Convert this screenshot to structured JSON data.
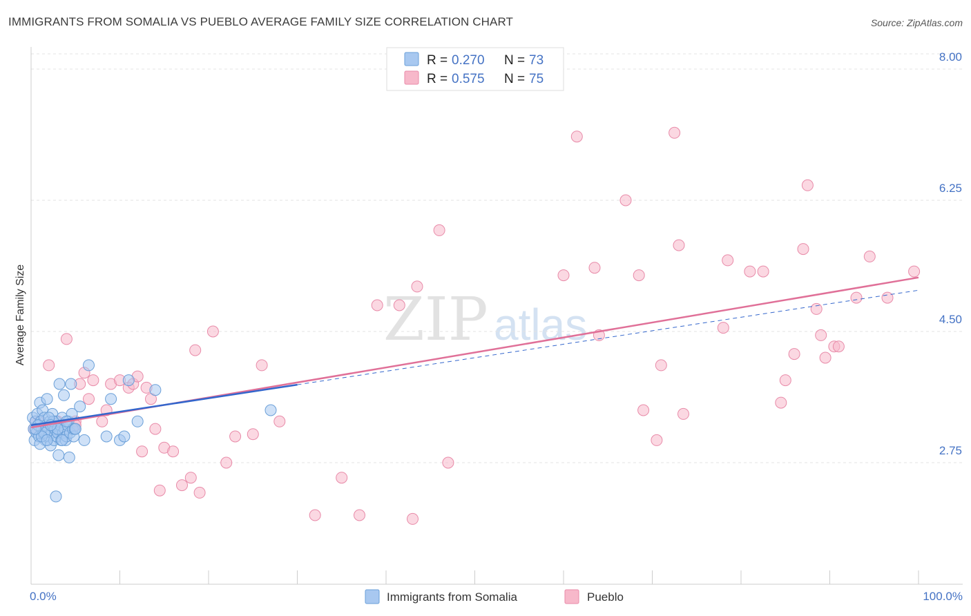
{
  "title": "IMMIGRANTS FROM SOMALIA VS PUEBLO AVERAGE FAMILY SIZE CORRELATION CHART",
  "source": "Source: ZipAtlas.com",
  "watermark": {
    "zip": "ZIP",
    "atlas": "atlas"
  },
  "colors": {
    "somalia_fill": "#a8c8f0",
    "somalia_stroke": "#6a9fd8",
    "somalia_line": "#3366cc",
    "pueblo_fill": "#f7b8ca",
    "pueblo_stroke": "#e88aa8",
    "pueblo_line": "#e07098",
    "grid": "#e3e3e3",
    "axis_tick_label": "#4472c4"
  },
  "chart_data": {
    "type": "scatter",
    "title": "IMMIGRANTS FROM SOMALIA VS PUEBLO AVERAGE FAMILY SIZE CORRELATION CHART",
    "xlabel": "",
    "ylabel": "Average Family Size",
    "xlim": [
      0,
      100
    ],
    "ylim": [
      1.2,
      8.5
    ],
    "x_tick_labels": [
      "0.0%",
      "100.0%"
    ],
    "y_ticks": [
      2.75,
      4.5,
      6.25,
      8.0
    ],
    "y_tick_labels": [
      "2.75",
      "4.50",
      "6.25",
      "8.00"
    ],
    "grid": "horizontal-dashed",
    "legend": {
      "placement": "top-center",
      "rows": [
        {
          "r_label": "R = ",
          "r_value": "0.270",
          "n_label": "N = ",
          "n_value": "73"
        },
        {
          "r_label": "R = ",
          "r_value": "0.575",
          "n_label": "N = ",
          "n_value": "75"
        }
      ]
    },
    "bottom_legend": [
      "Immigrants from Somalia",
      "Pueblo"
    ],
    "series": [
      {
        "name": "Immigrants from Somalia",
        "r": 0.27,
        "n": 73,
        "trend": {
          "x0": 0,
          "y0": 3.25,
          "x1": 30,
          "y1": 3.79
        },
        "points": [
          [
            0.2,
            3.35
          ],
          [
            0.3,
            3.2
          ],
          [
            0.4,
            3.05
          ],
          [
            0.5,
            3.3
          ],
          [
            0.6,
            3.15
          ],
          [
            0.7,
            3.4
          ],
          [
            0.8,
            3.25
          ],
          [
            0.9,
            3.1
          ],
          [
            1.0,
            3.55
          ],
          [
            1.1,
            3.3
          ],
          [
            1.2,
            3.2
          ],
          [
            1.3,
            3.45
          ],
          [
            1.4,
            3.15
          ],
          [
            1.5,
            3.35
          ],
          [
            1.6,
            3.05
          ],
          [
            1.7,
            3.25
          ],
          [
            1.8,
            3.6
          ],
          [
            1.9,
            3.2
          ],
          [
            2.0,
            3.1
          ],
          [
            2.1,
            3.3
          ],
          [
            2.2,
            2.98
          ],
          [
            2.3,
            3.15
          ],
          [
            2.4,
            3.4
          ],
          [
            2.5,
            3.25
          ],
          [
            2.6,
            3.05
          ],
          [
            2.7,
            3.2
          ],
          [
            2.8,
            3.3
          ],
          [
            2.9,
            3.1
          ],
          [
            3.0,
            3.15
          ],
          [
            3.1,
            2.85
          ],
          [
            3.2,
            3.8
          ],
          [
            3.3,
            3.25
          ],
          [
            3.4,
            3.05
          ],
          [
            3.5,
            3.35
          ],
          [
            3.6,
            3.15
          ],
          [
            3.7,
            3.65
          ],
          [
            3.8,
            3.2
          ],
          [
            3.9,
            3.05
          ],
          [
            4.0,
            3.1
          ],
          [
            4.1,
            3.25
          ],
          [
            4.2,
            3.3
          ],
          [
            4.3,
            2.82
          ],
          [
            4.4,
            3.15
          ],
          [
            4.5,
            3.8
          ],
          [
            4.6,
            3.4
          ],
          [
            4.7,
            3.2
          ],
          [
            4.8,
            3.1
          ],
          [
            4.9,
            3.2
          ],
          [
            1.0,
            3.0
          ],
          [
            1.5,
            3.15
          ],
          [
            2.5,
            3.3
          ],
          [
            3.5,
            3.05
          ],
          [
            5.5,
            3.5
          ],
          [
            6.0,
            3.05
          ],
          [
            6.5,
            4.05
          ],
          [
            8.5,
            3.1
          ],
          [
            9.0,
            3.6
          ],
          [
            10.0,
            3.05
          ],
          [
            10.5,
            3.1
          ],
          [
            11.0,
            3.85
          ],
          [
            12.0,
            3.3
          ],
          [
            14.0,
            3.72
          ],
          [
            27.0,
            3.45
          ],
          [
            2.8,
            2.3
          ],
          [
            0.8,
            3.25
          ],
          [
            1.2,
            3.1
          ],
          [
            2.0,
            3.35
          ],
          [
            3.0,
            3.2
          ],
          [
            4.0,
            3.3
          ],
          [
            5.0,
            3.2
          ],
          [
            0.5,
            3.2
          ],
          [
            1.8,
            3.05
          ],
          [
            2.2,
            3.25
          ]
        ]
      },
      {
        "name": "Pueblo",
        "r": 0.575,
        "n": 75,
        "trend": {
          "x0": 0,
          "y0": 3.22,
          "x1": 100,
          "y1": 5.22
        },
        "points": [
          [
            0.3,
            3.2
          ],
          [
            0.5,
            3.3
          ],
          [
            1.0,
            3.3
          ],
          [
            2.0,
            4.05
          ],
          [
            3.0,
            3.3
          ],
          [
            4.0,
            4.4
          ],
          [
            5.0,
            3.3
          ],
          [
            5.0,
            3.25
          ],
          [
            5.5,
            3.8
          ],
          [
            6.0,
            3.95
          ],
          [
            6.5,
            3.6
          ],
          [
            7.0,
            3.85
          ],
          [
            8.0,
            3.3
          ],
          [
            8.5,
            3.45
          ],
          [
            9.0,
            3.8
          ],
          [
            10.0,
            3.85
          ],
          [
            11.0,
            3.75
          ],
          [
            11.5,
            3.8
          ],
          [
            12.0,
            3.9
          ],
          [
            12.5,
            2.9
          ],
          [
            13.0,
            3.75
          ],
          [
            13.5,
            3.6
          ],
          [
            14.0,
            3.2
          ],
          [
            14.5,
            2.38
          ],
          [
            15.0,
            2.95
          ],
          [
            16.0,
            2.9
          ],
          [
            17.0,
            2.45
          ],
          [
            18.0,
            2.55
          ],
          [
            18.5,
            4.25
          ],
          [
            19.0,
            2.35
          ],
          [
            20.5,
            4.5
          ],
          [
            22.0,
            2.75
          ],
          [
            23.0,
            3.1
          ],
          [
            25.0,
            3.13
          ],
          [
            26.0,
            4.05
          ],
          [
            28.0,
            3.3
          ],
          [
            32.0,
            2.05
          ],
          [
            35.0,
            2.55
          ],
          [
            37.0,
            2.05
          ],
          [
            39.0,
            4.85
          ],
          [
            41.5,
            4.85
          ],
          [
            43.0,
            2.0
          ],
          [
            43.5,
            5.1
          ],
          [
            46.0,
            5.85
          ],
          [
            47.0,
            2.75
          ],
          [
            60.0,
            5.25
          ],
          [
            61.5,
            7.1
          ],
          [
            63.5,
            5.35
          ],
          [
            64.0,
            4.45
          ],
          [
            67.0,
            6.25
          ],
          [
            68.5,
            5.25
          ],
          [
            69.0,
            3.45
          ],
          [
            70.5,
            3.05
          ],
          [
            71.0,
            4.05
          ],
          [
            72.5,
            7.15
          ],
          [
            73.0,
            5.65
          ],
          [
            73.5,
            3.4
          ],
          [
            78.0,
            4.55
          ],
          [
            78.5,
            5.45
          ],
          [
            81.0,
            5.3
          ],
          [
            82.5,
            5.3
          ],
          [
            84.5,
            3.55
          ],
          [
            85.0,
            3.85
          ],
          [
            86.0,
            4.2
          ],
          [
            87.0,
            5.6
          ],
          [
            87.5,
            6.45
          ],
          [
            88.5,
            4.8
          ],
          [
            89.0,
            4.45
          ],
          [
            89.5,
            4.15
          ],
          [
            90.5,
            4.3
          ],
          [
            91.0,
            4.3
          ],
          [
            93.0,
            4.95
          ],
          [
            94.5,
            5.5
          ],
          [
            96.5,
            4.95
          ],
          [
            99.5,
            5.3
          ]
        ]
      }
    ]
  }
}
